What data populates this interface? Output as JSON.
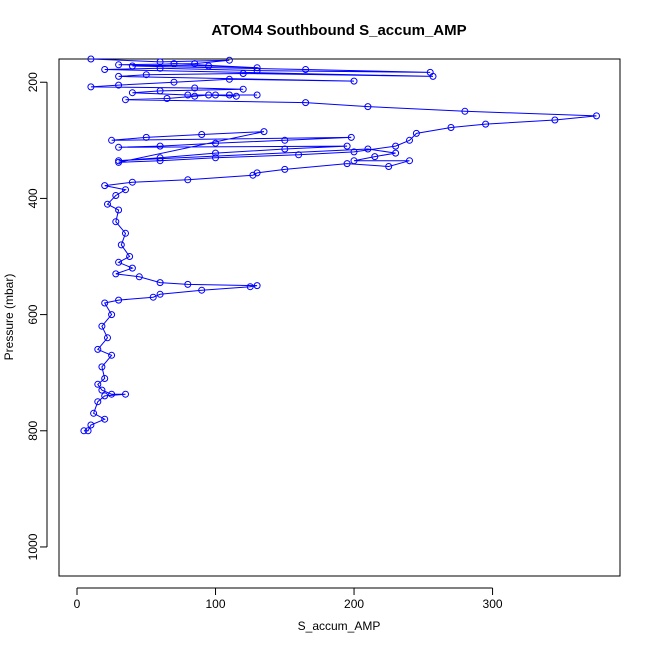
{
  "chart_data": {
    "type": "scatter",
    "title": "ATOM4 Southbound S_accum_AMP",
    "xlabel": "S_accum_AMP",
    "ylabel": "Pressure (mbar)",
    "xlim": [
      -13,
      392
    ],
    "ylim": [
      1050,
      160
    ],
    "y_reversed": true,
    "x_ticks": [
      0,
      100,
      200,
      300
    ],
    "y_ticks": [
      200,
      400,
      600,
      800,
      1000
    ],
    "grid": false,
    "marker": "open-circle",
    "connected": true,
    "color": "#0000ff",
    "series": [
      {
        "values": [
          [
            10,
            160
          ],
          [
            60,
            165
          ],
          [
            110,
            162
          ],
          [
            85,
            168
          ],
          [
            30,
            170
          ],
          [
            95,
            172
          ],
          [
            130,
            175
          ],
          [
            70,
            168
          ],
          [
            40,
            172
          ],
          [
            165,
            178
          ],
          [
            255,
            183
          ],
          [
            130,
            180
          ],
          [
            60,
            176
          ],
          [
            20,
            178
          ],
          [
            257,
            190
          ],
          [
            120,
            185
          ],
          [
            50,
            187
          ],
          [
            30,
            190
          ],
          [
            200,
            198
          ],
          [
            110,
            195
          ],
          [
            70,
            200
          ],
          [
            30,
            205
          ],
          [
            10,
            208
          ],
          [
            85,
            210
          ],
          [
            120,
            212
          ],
          [
            60,
            215
          ],
          [
            40,
            218
          ],
          [
            80,
            222
          ],
          [
            110,
            222
          ],
          [
            130,
            222
          ],
          [
            100,
            222
          ],
          [
            115,
            224
          ],
          [
            95,
            222
          ],
          [
            85,
            224
          ],
          [
            65,
            228
          ],
          [
            35,
            230
          ],
          [
            165,
            235
          ],
          [
            210,
            242
          ],
          [
            280,
            250
          ],
          [
            375,
            258
          ],
          [
            345,
            265
          ],
          [
            295,
            272
          ],
          [
            270,
            278
          ],
          [
            245,
            288
          ],
          [
            240,
            300
          ],
          [
            230,
            310
          ],
          [
            200,
            320
          ],
          [
            160,
            325
          ],
          [
            100,
            330
          ],
          [
            60,
            335
          ],
          [
            30,
            338
          ],
          [
            135,
            285
          ],
          [
            90,
            290
          ],
          [
            50,
            295
          ],
          [
            25,
            300
          ],
          [
            198,
            295
          ],
          [
            150,
            300
          ],
          [
            100,
            305
          ],
          [
            60,
            310
          ],
          [
            30,
            312
          ],
          [
            195,
            310
          ],
          [
            150,
            315
          ],
          [
            100,
            322
          ],
          [
            60,
            330
          ],
          [
            30,
            335
          ],
          [
            210,
            315
          ],
          [
            230,
            322
          ],
          [
            215,
            328
          ],
          [
            200,
            335
          ],
          [
            240,
            335
          ],
          [
            225,
            345
          ],
          [
            195,
            340
          ],
          [
            150,
            350
          ],
          [
            130,
            356
          ],
          [
            127,
            360
          ],
          [
            80,
            368
          ],
          [
            40,
            372
          ],
          [
            20,
            378
          ],
          [
            35,
            385
          ],
          [
            28,
            395
          ],
          [
            22,
            410
          ],
          [
            30,
            420
          ],
          [
            28,
            440
          ],
          [
            35,
            460
          ],
          [
            32,
            480
          ],
          [
            38,
            500
          ],
          [
            30,
            510
          ],
          [
            40,
            520
          ],
          [
            28,
            530
          ],
          [
            45,
            535
          ],
          [
            60,
            545
          ],
          [
            80,
            548
          ],
          [
            130,
            550
          ],
          [
            125,
            552
          ],
          [
            90,
            558
          ],
          [
            60,
            565
          ],
          [
            55,
            570
          ],
          [
            30,
            575
          ],
          [
            20,
            580
          ],
          [
            25,
            600
          ],
          [
            18,
            620
          ],
          [
            22,
            640
          ],
          [
            15,
            660
          ],
          [
            25,
            670
          ],
          [
            18,
            690
          ],
          [
            20,
            710
          ],
          [
            15,
            720
          ],
          [
            18,
            730
          ],
          [
            25,
            737
          ],
          [
            35,
            737
          ],
          [
            20,
            740
          ],
          [
            15,
            750
          ],
          [
            12,
            770
          ],
          [
            20,
            780
          ],
          [
            10,
            790
          ],
          [
            8,
            800
          ],
          [
            5,
            800
          ]
        ]
      }
    ]
  }
}
